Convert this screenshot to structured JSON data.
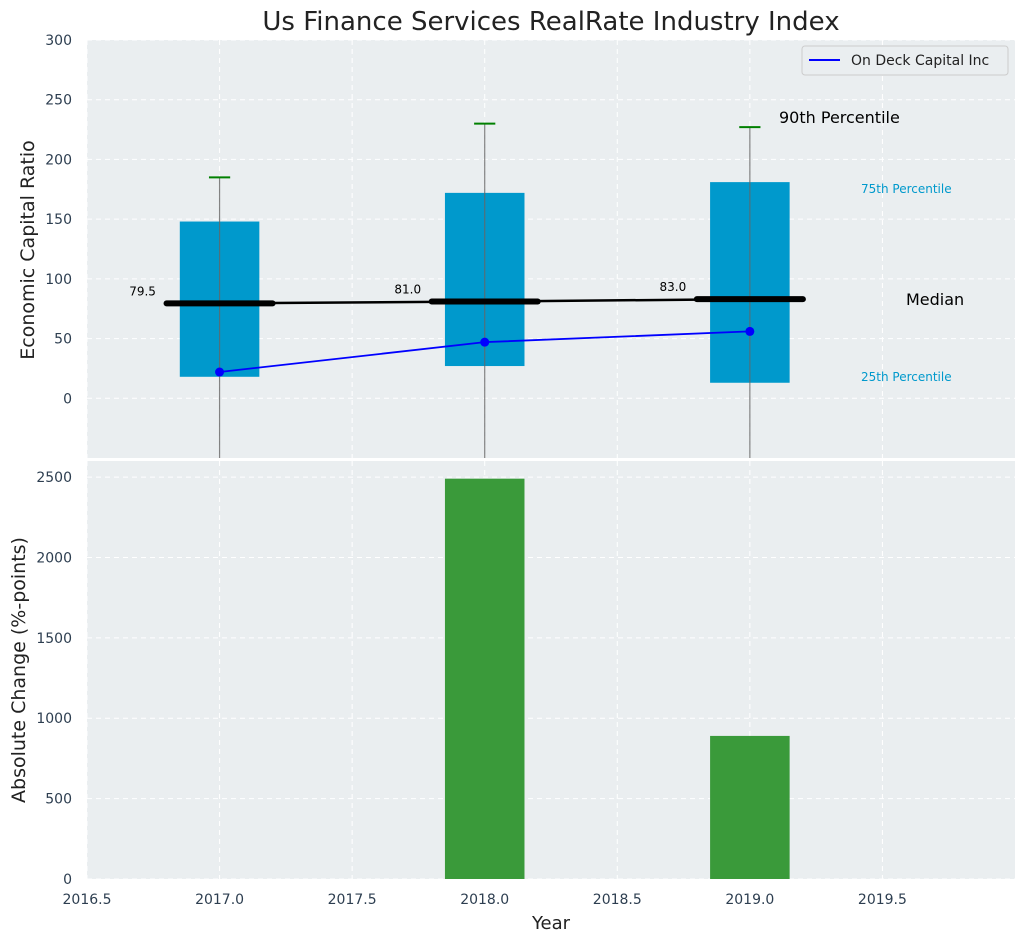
{
  "chart_data": {
    "title": "Us Finance Services RealRate Industry Index",
    "xlabel": "Year",
    "xlim": [
      2016.5,
      2020.0
    ],
    "x_ticks": [
      2016.5,
      2017.0,
      2017.5,
      2018.0,
      2018.5,
      2019.0,
      2019.5
    ],
    "x_tick_labels": [
      "2016.5",
      "2017.0",
      "2017.5",
      "2018.0",
      "2018.5",
      "2019.0",
      "2019.5"
    ],
    "grid": true,
    "top_panel": {
      "type": "box",
      "ylabel": "Economic Capital Ratio",
      "ylim": [
        -50,
        300
      ],
      "y_ticks": [
        0,
        50,
        100,
        150,
        200,
        250,
        300
      ],
      "y_tick_labels": [
        "0",
        "50",
        "100",
        "150",
        "200",
        "250",
        "300"
      ],
      "legend": {
        "placement": "top-right",
        "entries": [
          "On Deck Capital Inc"
        ]
      },
      "boxes": [
        {
          "x": 2017.0,
          "p25": 18,
          "median": 79.5,
          "p75": 148,
          "p90": 185
        },
        {
          "x": 2018.0,
          "p25": 27,
          "median": 81.0,
          "p75": 172,
          "p90": 230
        },
        {
          "x": 2019.0,
          "p25": 13,
          "median": 83.0,
          "p75": 181,
          "p90": 227
        }
      ],
      "median_labels": [
        "79.5",
        "81.0",
        "83.0"
      ],
      "series": [
        {
          "name": "On Deck Capital Inc",
          "x": [
            2017.0,
            2018.0,
            2019.0
          ],
          "y": [
            22,
            47,
            56
          ],
          "color": "#0000ff"
        }
      ],
      "annotations": {
        "p90": "90th Percentile",
        "p75": "75th Percentile",
        "median": "Median",
        "p25": "25th Percentile"
      },
      "colors": {
        "box": "#0099cc",
        "whisker_cap": "#008000",
        "median_line": "#000000"
      }
    },
    "bottom_panel": {
      "type": "bar",
      "ylabel": "Absolute Change (%-points)",
      "ylim": [
        0,
        2600
      ],
      "y_ticks": [
        0,
        500,
        1000,
        1500,
        2000,
        2500
      ],
      "y_tick_labels": [
        "0",
        "500",
        "1000",
        "1500",
        "2000",
        "2500"
      ],
      "x": [
        2018.0,
        2019.0
      ],
      "values": [
        2490,
        890
      ],
      "color": "#3a9a3a"
    }
  }
}
